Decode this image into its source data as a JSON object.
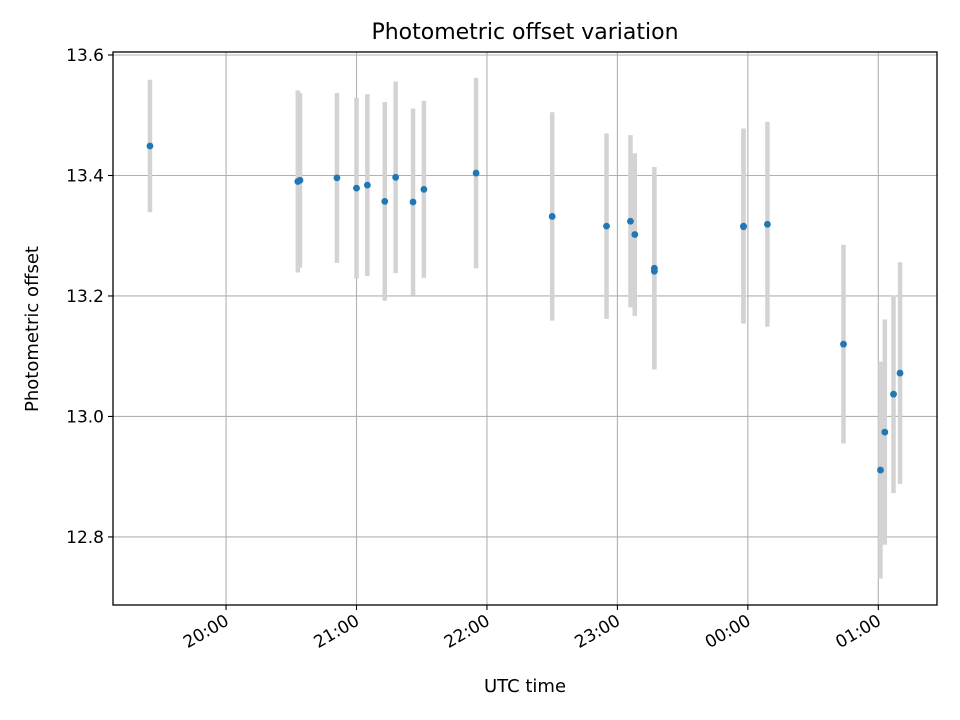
{
  "chart_data": {
    "type": "scatter",
    "title": "Photometric offset variation",
    "xlabel": "UTC time",
    "ylabel": "Photometric offset",
    "x_axis": {
      "type": "time",
      "start": "19:08",
      "end": "01:27",
      "ticks": [
        "20:00",
        "21:00",
        "22:00",
        "23:00",
        "00:00",
        "01:00"
      ]
    },
    "y_axis": {
      "min": 12.687,
      "max": 13.605,
      "ticks": [
        "12.8",
        "13.0",
        "13.2",
        "13.4",
        "13.6"
      ]
    },
    "grid": true,
    "colors": {
      "point": "#1f77b4",
      "errorbar": "#d3d3d3",
      "grid": "#b0b0b0"
    },
    "points": [
      {
        "x": "19:25",
        "y": 13.449,
        "err": 0.11
      },
      {
        "x": "20:33",
        "y": 13.39,
        "err": 0.151
      },
      {
        "x": "20:34",
        "y": 13.392,
        "err": 0.145
      },
      {
        "x": "20:51",
        "y": 13.396,
        "err": 0.141
      },
      {
        "x": "21:00",
        "y": 13.379,
        "err": 0.15
      },
      {
        "x": "21:05",
        "y": 13.384,
        "err": 0.151
      },
      {
        "x": "21:13",
        "y": 13.357,
        "err": 0.165
      },
      {
        "x": "21:18",
        "y": 13.397,
        "err": 0.159
      },
      {
        "x": "21:26",
        "y": 13.356,
        "err": 0.155
      },
      {
        "x": "21:31",
        "y": 13.377,
        "err": 0.147
      },
      {
        "x": "21:55",
        "y": 13.404,
        "err": 0.158
      },
      {
        "x": "22:30",
        "y": 13.332,
        "err": 0.173
      },
      {
        "x": "22:55",
        "y": 13.316,
        "err": 0.154
      },
      {
        "x": "23:06",
        "y": 13.324,
        "err": 0.143
      },
      {
        "x": "23:08",
        "y": 13.302,
        "err": 0.135
      },
      {
        "x": "23:17",
        "y": 13.246,
        "err": 0.168
      },
      {
        "x": "23:17",
        "y": 13.241,
        "err": 0.16
      },
      {
        "x": "23:58",
        "y": 13.316,
        "err": 0.162
      },
      {
        "x": "23:58",
        "y": 13.315,
        "err": 0.16
      },
      {
        "x": "00:09",
        "y": 13.319,
        "err": 0.17
      },
      {
        "x": "00:44",
        "y": 13.12,
        "err": 0.165
      },
      {
        "x": "01:01",
        "y": 12.911,
        "err": 0.18
      },
      {
        "x": "01:03",
        "y": 12.974,
        "err": 0.187
      },
      {
        "x": "01:07",
        "y": 13.037,
        "err": 0.164
      },
      {
        "x": "01:10",
        "y": 13.072,
        "err": 0.184
      }
    ]
  }
}
